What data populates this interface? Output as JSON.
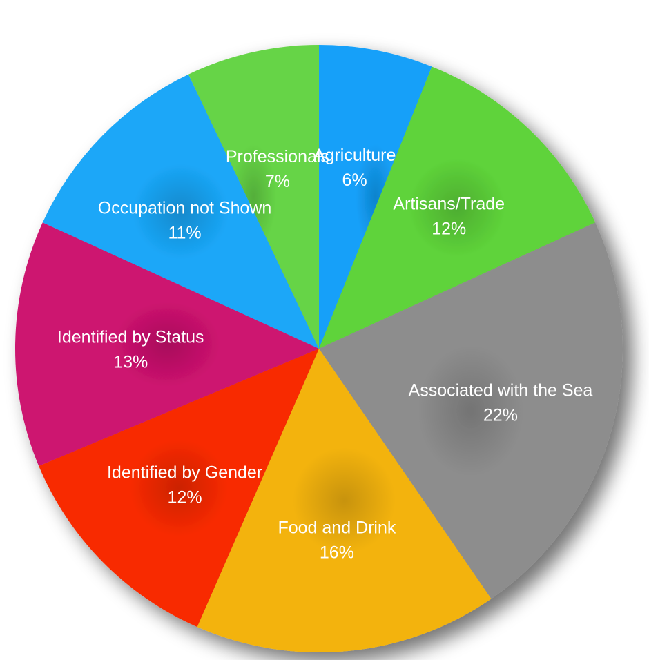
{
  "chart_data": {
    "type": "pie",
    "title": "",
    "start_angle_deg": 0,
    "direction": "clockwise",
    "slices": [
      {
        "label": "Agriculture",
        "value": 6,
        "value_label": "6%",
        "color": "#13a0f9"
      },
      {
        "label": "Artisans/Trade",
        "value": 12,
        "value_label": "12%",
        "color": "#5ed33a"
      },
      {
        "label": "Associated with the Sea",
        "value": 22,
        "value_label": "22%",
        "color": "#8d8d8d"
      },
      {
        "label": "Food and Drink",
        "value": 16,
        "value_label": "16%",
        "color": "#f3b30d"
      },
      {
        "label": "Identified by Gender",
        "value": 12,
        "value_label": "12%",
        "color": "#f82a06"
      },
      {
        "label": "Identified by Status",
        "value": 13,
        "value_label": "13%",
        "color": "#cd126f"
      },
      {
        "label": "Occupation not Shown",
        "value": 11,
        "value_label": "11%",
        "color": "#1aa7f8"
      },
      {
        "label": "Professionals",
        "value": 7,
        "value_label": "7%",
        "color": "#66d446"
      }
    ]
  }
}
